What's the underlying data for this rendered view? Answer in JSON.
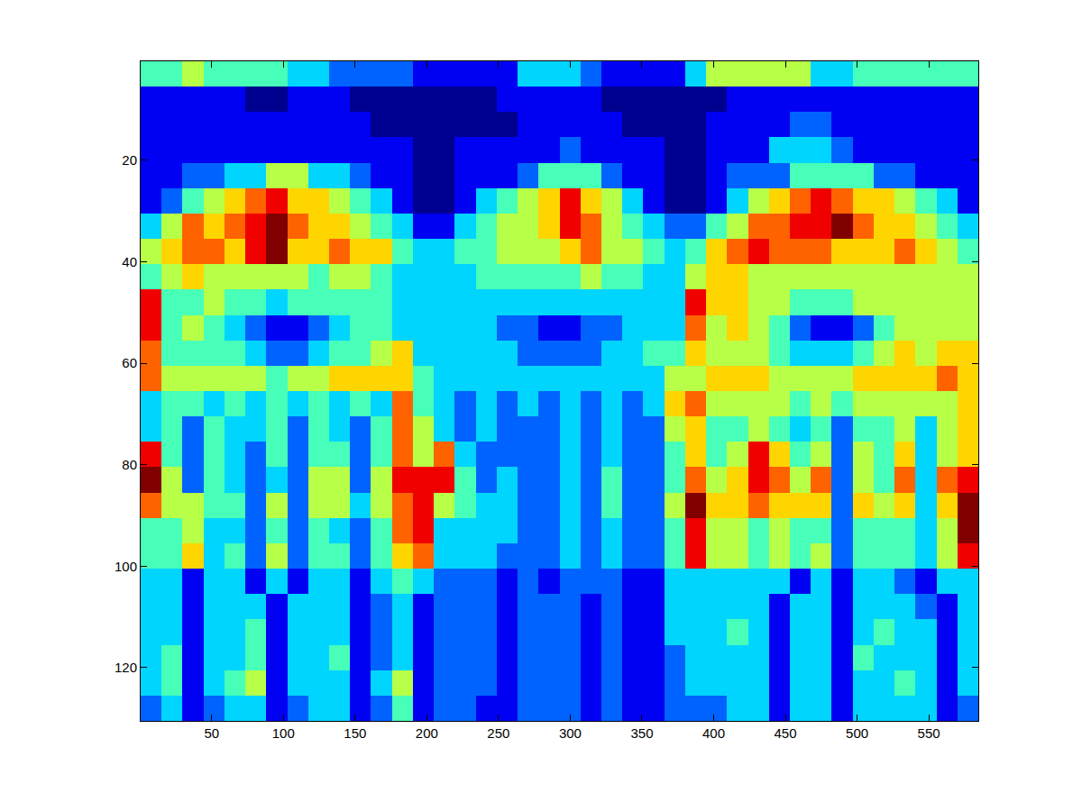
{
  "chart_data": {
    "type": "heatmap",
    "x": [
      7.8,
      22.4,
      37.0,
      51.6,
      66.2,
      80.8,
      95.4,
      110.0,
      124.6,
      139.2,
      153.8,
      168.4,
      183.0,
      197.6,
      212.2,
      226.8,
      241.4,
      256.0,
      270.6,
      285.2,
      299.8,
      314.4,
      329.0,
      343.6,
      358.2,
      372.8,
      387.4,
      402.0,
      416.6,
      431.2,
      445.8,
      460.4,
      475.0,
      489.6,
      504.2,
      518.8,
      533.4,
      548.0,
      562.6,
      577.2
    ],
    "y": [
      3,
      8,
      13,
      18,
      23,
      28,
      33,
      38,
      43,
      48,
      53,
      58,
      63,
      68,
      73,
      78,
      83,
      88,
      93,
      98,
      103,
      108,
      113,
      118,
      123,
      128
    ],
    "z": [
      [
        4,
        4,
        5,
        4,
        4,
        4,
        4,
        3,
        3,
        2,
        2,
        2,
        2,
        1,
        1,
        1,
        1,
        1,
        3,
        3,
        3,
        2,
        1,
        1,
        1,
        1,
        3,
        5,
        5,
        5,
        5,
        5,
        3,
        3,
        4,
        4,
        4,
        4,
        4,
        4
      ],
      [
        1,
        1,
        1,
        1,
        1,
        0,
        0,
        1,
        1,
        1,
        0,
        0,
        0,
        0,
        0,
        0,
        0,
        1,
        1,
        1,
        1,
        1,
        0,
        0,
        0,
        0,
        0,
        0,
        1,
        1,
        1,
        1,
        1,
        1,
        1,
        1,
        1,
        1,
        1,
        1
      ],
      [
        1,
        1,
        1,
        1,
        1,
        1,
        1,
        1,
        1,
        1,
        1,
        0,
        0,
        0,
        0,
        0,
        0,
        0,
        1,
        1,
        1,
        1,
        1,
        0,
        0,
        0,
        0,
        1,
        1,
        1,
        1,
        2,
        2,
        1,
        1,
        1,
        1,
        1,
        1,
        1
      ],
      [
        1,
        1,
        1,
        1,
        1,
        1,
        1,
        1,
        1,
        1,
        1,
        1,
        1,
        0,
        0,
        1,
        1,
        1,
        1,
        1,
        2,
        1,
        1,
        1,
        1,
        0,
        0,
        1,
        1,
        1,
        3,
        3,
        3,
        2,
        1,
        1,
        1,
        1,
        1,
        1
      ],
      [
        1,
        1,
        2,
        2,
        3,
        3,
        5,
        5,
        3,
        3,
        2,
        1,
        1,
        0,
        0,
        1,
        1,
        1,
        2,
        4,
        4,
        4,
        2,
        1,
        1,
        0,
        0,
        1,
        2,
        2,
        2,
        4,
        4,
        4,
        4,
        2,
        2,
        1,
        1,
        1
      ],
      [
        1,
        2,
        4,
        5,
        6,
        7,
        8,
        6,
        6,
        5,
        4,
        3,
        1,
        0,
        0,
        1,
        3,
        4,
        5,
        6,
        8,
        6,
        5,
        3,
        1,
        0,
        0,
        1,
        3,
        5,
        6,
        7,
        8,
        7,
        6,
        6,
        5,
        4,
        3,
        1
      ],
      [
        3,
        5,
        7,
        6,
        7,
        8,
        9,
        7,
        6,
        6,
        5,
        4,
        3,
        1,
        1,
        3,
        4,
        5,
        5,
        6,
        8,
        7,
        5,
        4,
        3,
        2,
        2,
        4,
        5,
        7,
        7,
        8,
        8,
        9,
        7,
        6,
        6,
        5,
        4,
        3
      ],
      [
        5,
        6,
        7,
        7,
        6,
        8,
        9,
        6,
        6,
        7,
        6,
        6,
        4,
        3,
        3,
        4,
        4,
        5,
        5,
        5,
        6,
        7,
        5,
        5,
        4,
        3,
        4,
        6,
        7,
        8,
        7,
        7,
        7,
        6,
        6,
        6,
        7,
        6,
        5,
        4
      ],
      [
        4,
        5,
        6,
        5,
        5,
        5,
        5,
        5,
        4,
        5,
        5,
        4,
        3,
        3,
        3,
        3,
        4,
        4,
        4,
        4,
        4,
        5,
        4,
        4,
        3,
        3,
        5,
        6,
        6,
        5,
        5,
        5,
        5,
        5,
        5,
        5,
        5,
        5,
        5,
        5
      ],
      [
        8,
        4,
        4,
        5,
        4,
        4,
        3,
        4,
        4,
        4,
        4,
        4,
        3,
        3,
        3,
        3,
        3,
        3,
        3,
        3,
        3,
        3,
        3,
        3,
        3,
        3,
        8,
        6,
        6,
        5,
        5,
        4,
        4,
        4,
        5,
        5,
        5,
        5,
        5,
        5
      ],
      [
        8,
        4,
        5,
        4,
        3,
        2,
        1,
        1,
        2,
        3,
        4,
        4,
        3,
        3,
        3,
        3,
        3,
        2,
        2,
        1,
        1,
        2,
        2,
        3,
        3,
        3,
        7,
        5,
        6,
        5,
        4,
        2,
        1,
        1,
        2,
        4,
        5,
        5,
        5,
        5
      ],
      [
        7,
        4,
        4,
        4,
        4,
        3,
        2,
        2,
        3,
        4,
        4,
        5,
        6,
        3,
        3,
        3,
        3,
        3,
        2,
        2,
        2,
        2,
        3,
        3,
        4,
        4,
        6,
        5,
        5,
        5,
        4,
        3,
        3,
        3,
        4,
        5,
        6,
        5,
        6,
        6
      ],
      [
        7,
        5,
        5,
        5,
        5,
        5,
        4,
        5,
        5,
        6,
        6,
        6,
        6,
        4,
        3,
        3,
        3,
        3,
        3,
        3,
        3,
        3,
        3,
        3,
        3,
        5,
        5,
        6,
        6,
        6,
        5,
        5,
        5,
        5,
        6,
        6,
        6,
        6,
        7,
        6
      ],
      [
        3,
        4,
        4,
        3,
        4,
        3,
        4,
        3,
        4,
        3,
        4,
        3,
        7,
        4,
        3,
        2,
        3,
        2,
        3,
        2,
        3,
        2,
        3,
        2,
        3,
        6,
        7,
        5,
        5,
        5,
        5,
        4,
        5,
        4,
        5,
        5,
        5,
        5,
        5,
        6
      ],
      [
        3,
        4,
        2,
        4,
        3,
        3,
        4,
        2,
        4,
        3,
        2,
        4,
        7,
        5,
        3,
        2,
        3,
        2,
        2,
        2,
        3,
        2,
        3,
        2,
        2,
        5,
        6,
        4,
        4,
        5,
        4,
        3,
        4,
        2,
        4,
        4,
        5,
        3,
        5,
        6
      ],
      [
        8,
        4,
        2,
        4,
        3,
        2,
        4,
        2,
        4,
        4,
        2,
        4,
        7,
        5,
        7,
        3,
        2,
        2,
        2,
        2,
        3,
        2,
        3,
        2,
        2,
        4,
        6,
        4,
        5,
        8,
        6,
        4,
        5,
        2,
        5,
        4,
        6,
        3,
        5,
        6
      ],
      [
        9,
        5,
        2,
        4,
        3,
        2,
        3,
        2,
        5,
        5,
        2,
        5,
        8,
        8,
        8,
        4,
        2,
        3,
        2,
        2,
        3,
        2,
        4,
        2,
        2,
        4,
        7,
        5,
        6,
        8,
        7,
        5,
        7,
        2,
        5,
        4,
        7,
        3,
        7,
        8
      ],
      [
        7,
        5,
        5,
        4,
        4,
        2,
        5,
        2,
        5,
        5,
        3,
        5,
        7,
        8,
        5,
        4,
        3,
        3,
        2,
        2,
        3,
        2,
        4,
        2,
        2,
        5,
        9,
        6,
        6,
        7,
        6,
        6,
        6,
        2,
        6,
        5,
        6,
        3,
        6,
        9
      ],
      [
        4,
        4,
        5,
        3,
        3,
        2,
        4,
        2,
        4,
        3,
        2,
        4,
        7,
        8,
        3,
        3,
        3,
        3,
        2,
        2,
        3,
        2,
        3,
        2,
        2,
        4,
        8,
        5,
        5,
        4,
        5,
        4,
        4,
        2,
        4,
        4,
        4,
        3,
        5,
        9
      ],
      [
        4,
        4,
        6,
        3,
        4,
        2,
        5,
        2,
        4,
        4,
        2,
        4,
        6,
        7,
        3,
        3,
        3,
        2,
        2,
        2,
        3,
        2,
        3,
        2,
        2,
        4,
        8,
        5,
        5,
        4,
        5,
        4,
        5,
        2,
        4,
        4,
        4,
        3,
        5,
        8
      ],
      [
        3,
        3,
        1,
        3,
        3,
        1,
        3,
        1,
        3,
        3,
        1,
        3,
        4,
        3,
        2,
        2,
        2,
        1,
        2,
        1,
        2,
        2,
        2,
        1,
        1,
        3,
        3,
        3,
        3,
        3,
        3,
        1,
        3,
        1,
        3,
        3,
        2,
        1,
        3,
        3
      ],
      [
        3,
        3,
        1,
        3,
        3,
        3,
        1,
        3,
        3,
        3,
        1,
        2,
        3,
        1,
        2,
        2,
        2,
        1,
        2,
        2,
        2,
        1,
        2,
        1,
        1,
        3,
        3,
        3,
        3,
        3,
        1,
        3,
        3,
        1,
        3,
        3,
        3,
        2,
        1,
        3
      ],
      [
        3,
        3,
        1,
        3,
        3,
        4,
        1,
        3,
        3,
        3,
        1,
        2,
        3,
        1,
        2,
        2,
        2,
        1,
        2,
        2,
        2,
        1,
        2,
        1,
        1,
        3,
        3,
        3,
        4,
        3,
        1,
        3,
        3,
        1,
        3,
        4,
        3,
        3,
        1,
        3
      ],
      [
        3,
        4,
        1,
        3,
        3,
        4,
        1,
        3,
        3,
        4,
        1,
        2,
        3,
        1,
        2,
        2,
        2,
        1,
        2,
        2,
        2,
        1,
        2,
        1,
        1,
        2,
        3,
        3,
        3,
        3,
        1,
        3,
        3,
        1,
        4,
        3,
        3,
        3,
        1,
        3
      ],
      [
        3,
        4,
        1,
        3,
        4,
        5,
        1,
        3,
        3,
        3,
        1,
        3,
        5,
        1,
        2,
        2,
        2,
        1,
        2,
        2,
        2,
        1,
        2,
        1,
        1,
        2,
        3,
        3,
        3,
        3,
        1,
        3,
        3,
        1,
        3,
        3,
        4,
        3,
        1,
        3
      ],
      [
        2,
        3,
        1,
        2,
        3,
        3,
        1,
        2,
        3,
        3,
        1,
        2,
        4,
        1,
        2,
        2,
        1,
        1,
        2,
        2,
        2,
        1,
        2,
        1,
        1,
        2,
        2,
        2,
        3,
        3,
        1,
        3,
        3,
        1,
        3,
        3,
        3,
        3,
        1,
        2
      ]
    ],
    "zlim": [
      0,
      9
    ],
    "xlim": [
      0.5,
      584.5
    ],
    "ylim": [
      0.5,
      130.5
    ],
    "xticks": [
      50,
      100,
      150,
      200,
      250,
      300,
      350,
      400,
      450,
      500,
      550
    ],
    "yticks": [
      20,
      40,
      60,
      80,
      100,
      120
    ],
    "grid": false
  }
}
